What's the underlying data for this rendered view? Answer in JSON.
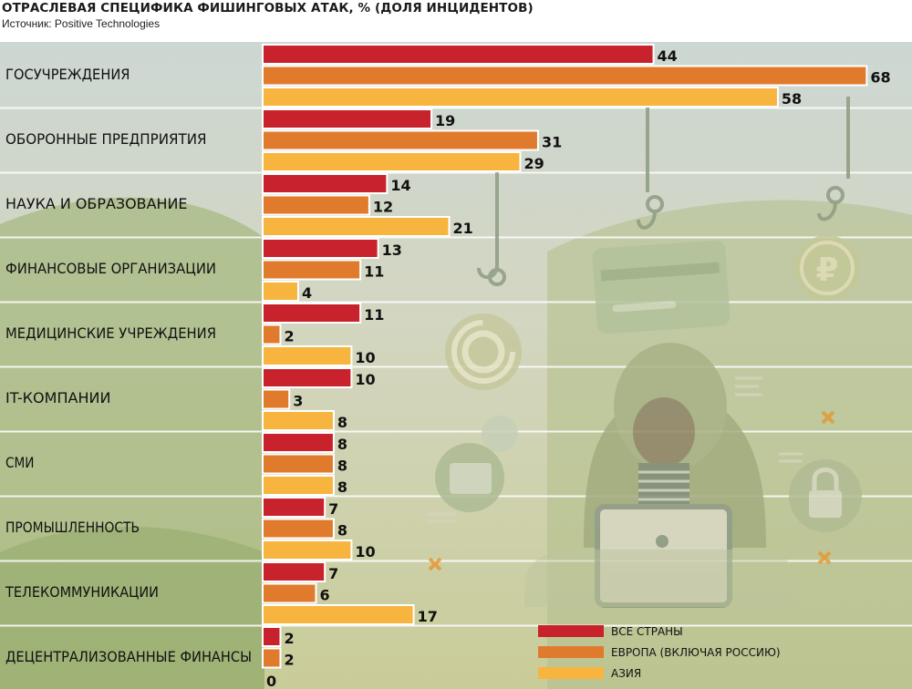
{
  "header": {
    "title": "ОТРАСЛЕВАЯ СПЕЦИФИКА ФИШИНГОВЫХ АТАК, % (ДОЛЯ ИНЦИДЕНТОВ)",
    "source": "Источник: Positive Technologies"
  },
  "colors": {
    "series": [
      "#c8232c",
      "#e07b2e",
      "#f7b43f"
    ],
    "bg_top": "#cfd8d2",
    "bg_bottom": "#b9c38c",
    "hill": "#9fb27a",
    "illustration": "#9aa78a"
  },
  "icons": [
    "fishing-hook-icon",
    "at-sign-icon",
    "credit-card-icon",
    "ruble-coin-icon",
    "hacker-icon",
    "laptop-icon",
    "wallet-icon",
    "padlock-icon",
    "list-icon",
    "cross-mark-icon"
  ],
  "chart_data": {
    "type": "bar",
    "orientation": "horizontal",
    "title": "ОТРАСЛЕВАЯ СПЕЦИФИКА ФИШИНГОВЫХ АТАК, % (ДОЛЯ ИНЦИДЕНТОВ)",
    "categories": [
      "ГОСУЧРЕЖДЕНИЯ",
      "ОБОРОННЫЕ ПРЕДПРИЯТИЯ",
      "НАУКА И ОБРАЗОВАНИЕ",
      "ФИНАНСОВЫЕ ОРГАНИЗАЦИИ",
      "МЕДИЦИНСКИЕ УЧРЕЖДЕНИЯ",
      "IT-КОМПАНИИ",
      "СМИ",
      "ПРОМЫШЛЕННОСТЬ",
      "ТЕЛЕКОММУНИКАЦИИ",
      "ДЕЦЕНТРАЛИЗОВАННЫЕ ФИНАНСЫ"
    ],
    "series": [
      {
        "name": "ВСЕ СТРАНЫ",
        "values": [
          44,
          19,
          14,
          13,
          11,
          10,
          8,
          7,
          7,
          2
        ]
      },
      {
        "name": "ЕВРОПА (ВКЛЮЧАЯ РОССИЮ)",
        "values": [
          68,
          31,
          12,
          11,
          2,
          3,
          8,
          8,
          6,
          2
        ]
      },
      {
        "name": "АЗИЯ",
        "values": [
          58,
          29,
          21,
          4,
          10,
          8,
          8,
          10,
          17,
          0
        ]
      }
    ],
    "xlim": [
      0,
      68
    ],
    "legend_position": "bottom-right",
    "grid": false,
    "data_labels": true
  }
}
